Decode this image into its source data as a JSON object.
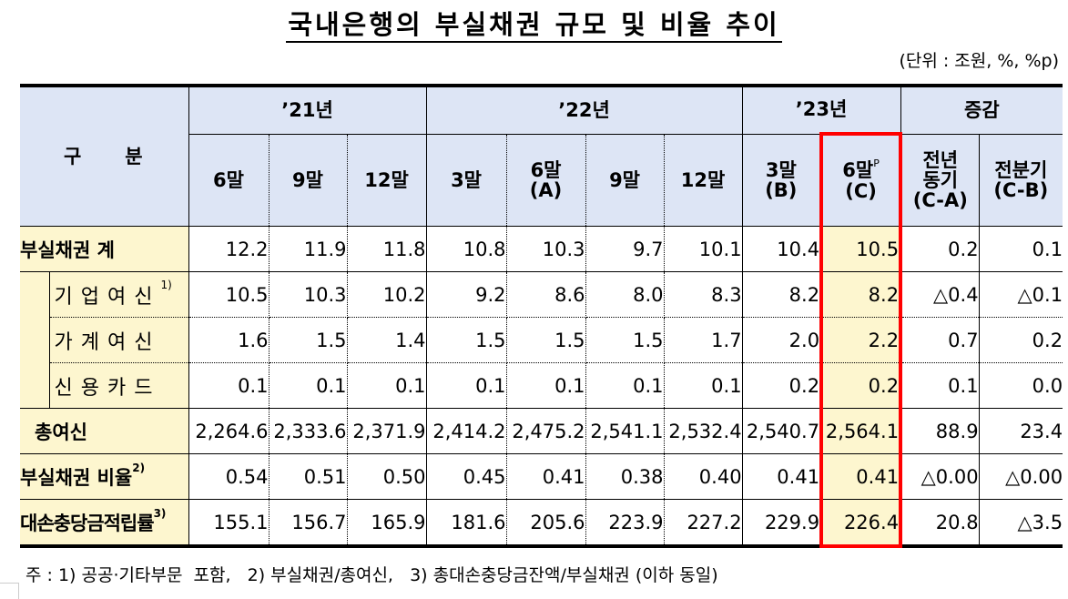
{
  "title": "국내은행의 부실채권 규모 및 비율 추이",
  "unit": "(단위 : 조원, %, %p)",
  "header": {
    "category": "구　　분",
    "years": [
      {
        "label": "’21년",
        "span": 3
      },
      {
        "label": "’22년",
        "span": 4
      },
      {
        "label": "’23년",
        "span": 2
      },
      {
        "label": "증감",
        "span": 2
      }
    ],
    "periods": [
      {
        "line1": "6말",
        "line2": ""
      },
      {
        "line1": "9말",
        "line2": ""
      },
      {
        "line1": "12말",
        "line2": ""
      },
      {
        "line1": "3말",
        "line2": ""
      },
      {
        "line1": "6말",
        "line2": "(A)"
      },
      {
        "line1": "9말",
        "line2": ""
      },
      {
        "line1": "12말",
        "line2": ""
      },
      {
        "line1": "3말",
        "line2": "(B)"
      },
      {
        "line1": "6말",
        "sup": "P",
        "line2": "(C)"
      },
      {
        "line1": "전년",
        "line1b": "동기",
        "line2": "(C-A)"
      },
      {
        "line1": "전분기",
        "line2": "(C-B)"
      }
    ]
  },
  "rows": [
    {
      "label": "부실채권 계",
      "type": "main",
      "values": [
        "12.2",
        "11.9",
        "11.8",
        "10.8",
        "10.3",
        "9.7",
        "10.1",
        "10.4",
        "10.5",
        "0.2",
        "0.1"
      ]
    },
    {
      "label": "기업여신",
      "sup": "1)",
      "type": "sub",
      "values": [
        "10.5",
        "10.3",
        "10.2",
        "9.2",
        "8.6",
        "8.0",
        "8.3",
        "8.2",
        "8.2",
        "△0.4",
        "△0.1"
      ]
    },
    {
      "label": "가계여신",
      "type": "sub",
      "values": [
        "1.6",
        "1.5",
        "1.4",
        "1.5",
        "1.5",
        "1.5",
        "1.7",
        "2.0",
        "2.2",
        "0.7",
        "0.2"
      ]
    },
    {
      "label": "신용카드",
      "type": "sub",
      "values": [
        "0.1",
        "0.1",
        "0.1",
        "0.1",
        "0.1",
        "0.1",
        "0.1",
        "0.2",
        "0.2",
        "0.1",
        "0.0"
      ]
    },
    {
      "label": "총여신",
      "type": "main",
      "values": [
        "2,264.6",
        "2,333.6",
        "2,371.9",
        "2,414.2",
        "2,475.2",
        "2,541.1",
        "2,532.4",
        "2,540.7",
        "2,564.1",
        "88.9",
        "23.4"
      ]
    },
    {
      "label": "부실채권 비율",
      "sup": "2)",
      "type": "main",
      "values": [
        "0.54",
        "0.51",
        "0.50",
        "0.45",
        "0.41",
        "0.38",
        "0.40",
        "0.41",
        "0.41",
        "△0.00",
        "△0.00"
      ]
    },
    {
      "label": "대손충당금적립률",
      "sup": "3)",
      "type": "main",
      "values": [
        "155.1",
        "156.7",
        "165.9",
        "181.6",
        "205.6",
        "223.9",
        "227.2",
        "229.9",
        "226.4",
        "20.8",
        "△3.5"
      ]
    }
  ],
  "highlight": {
    "column_index": 8,
    "border_color": "#ff0000",
    "fill_color": "#fdf6cf"
  },
  "colors": {
    "header_bg": "#dde5f5",
    "label_bg": "#fdf6cf"
  },
  "note": "주 : 1) 공공·기타부문  포함,   2) 부실채권/총여신,   3) 총대손충당금잔액/부실채권 (이하 동일)"
}
